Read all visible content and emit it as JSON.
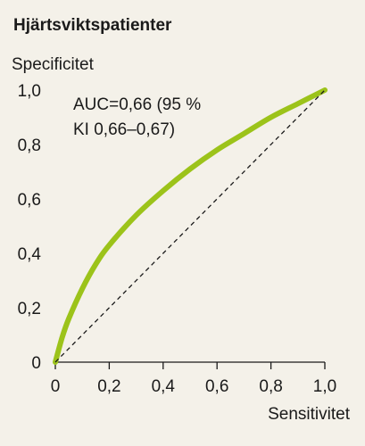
{
  "chart_data": {
    "type": "line",
    "title": "Hjärtsviktspatienter",
    "xlabel": "Sensitivitet",
    "ylabel": "Specificitet",
    "xlim": [
      0,
      1
    ],
    "ylim": [
      0,
      1
    ],
    "x_tick_labels": [
      "0",
      "0,2",
      "0,4",
      "0,6",
      "0,8",
      "1,0"
    ],
    "y_tick_labels": [
      "0",
      "0,2",
      "0,4",
      "0,6",
      "0,8",
      "1,0"
    ],
    "annotation_lines": [
      "AUC=0,66 (95 %",
      "KI 0,66–0,67)"
    ],
    "grid": false,
    "legend": "none",
    "series": [
      {
        "color": "#9cc31a",
        "style": "solid",
        "x": [
          0,
          0.025,
          0.05,
          0.1,
          0.15,
          0.2,
          0.3,
          0.4,
          0.5,
          0.6,
          0.7,
          0.8,
          0.9,
          1.0
        ],
        "y": [
          0,
          0.09,
          0.16,
          0.27,
          0.36,
          0.43,
          0.54,
          0.63,
          0.71,
          0.78,
          0.84,
          0.9,
          0.95,
          1.0
        ]
      },
      {
        "color": "#1a1a1a",
        "style": "dashed",
        "x": [
          0,
          1
        ],
        "y": [
          0,
          1
        ]
      }
    ]
  }
}
